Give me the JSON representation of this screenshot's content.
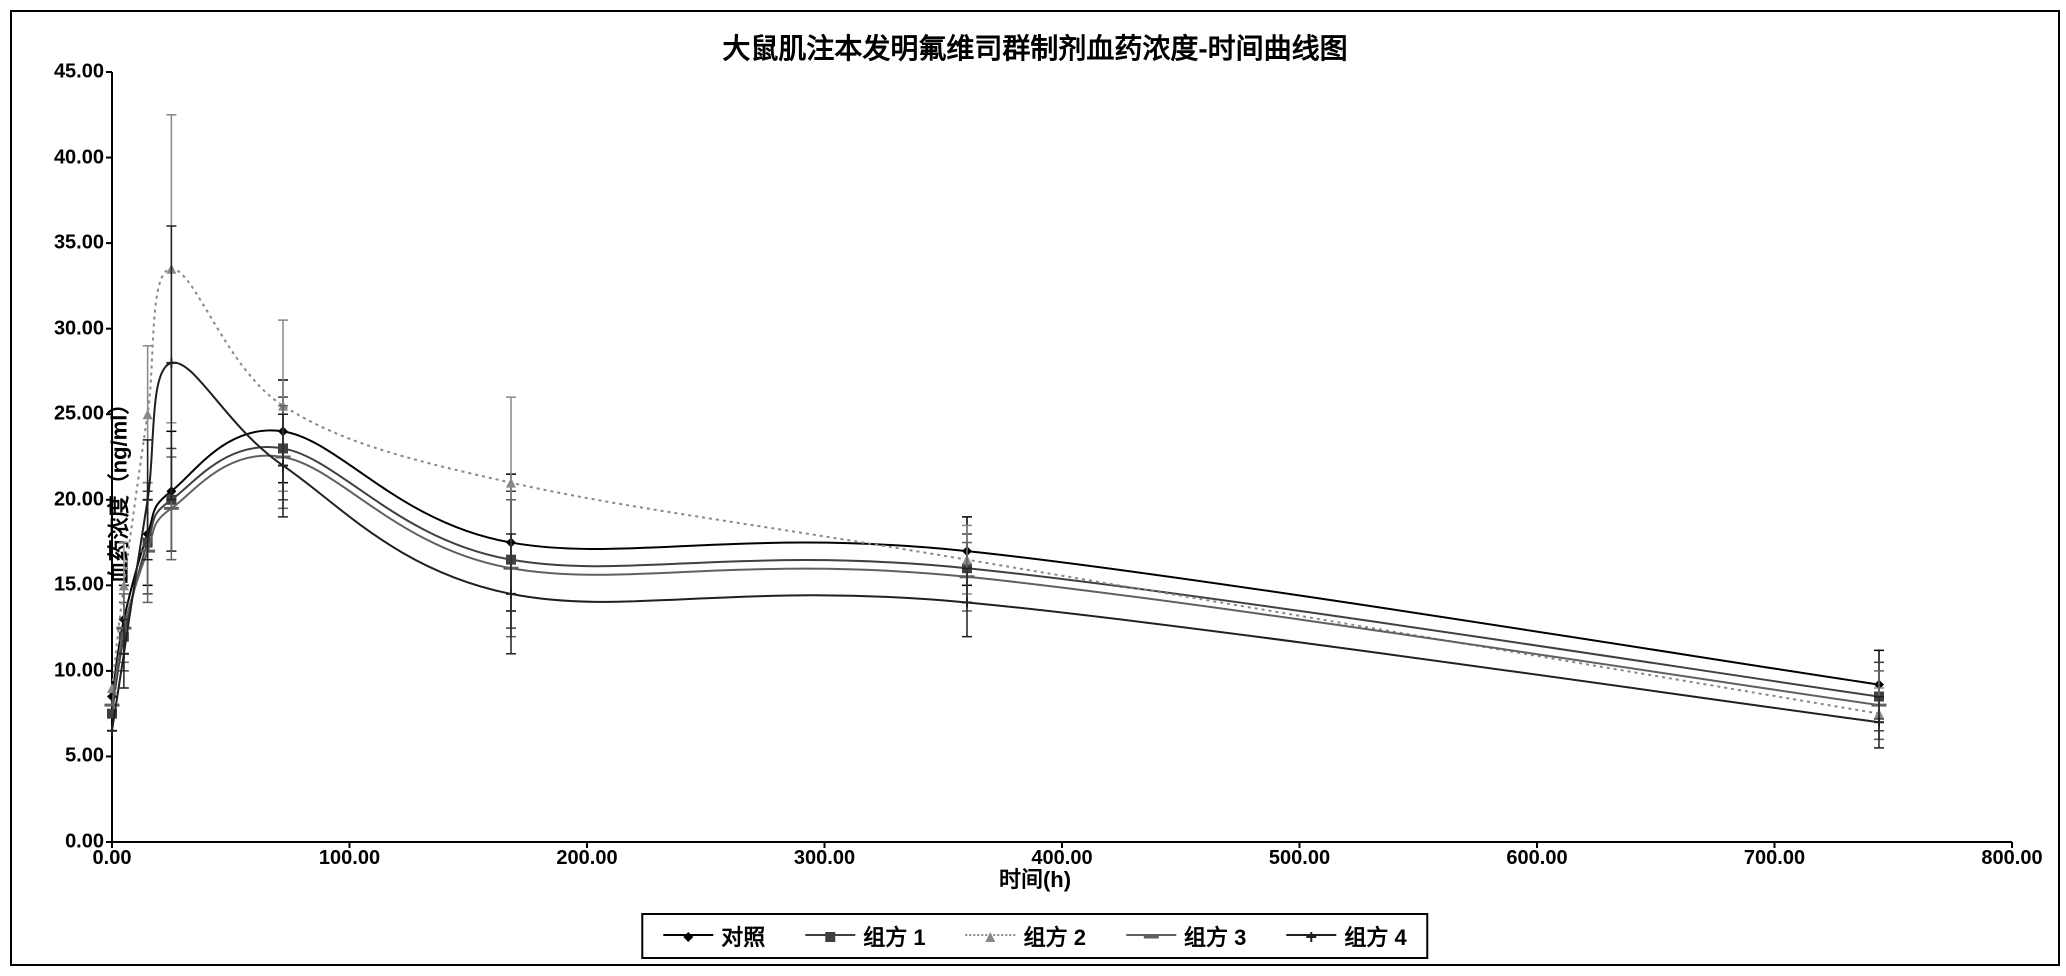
{
  "chart": {
    "title": "大鼠肌注本发明氟维司群制剂血药浓度-时间曲线图",
    "xlabel": "时间(h)",
    "ylabel": "血药浓度（ng/ml）",
    "xlim": [
      0,
      800
    ],
    "ylim": [
      0,
      45
    ],
    "xticks": [
      0,
      100,
      200,
      300,
      400,
      500,
      600,
      700,
      800
    ],
    "xtick_labels": [
      "0.00",
      "100.00",
      "200.00",
      "300.00",
      "400.00",
      "500.00",
      "600.00",
      "700.00",
      "800.00"
    ],
    "yticks": [
      0,
      5,
      10,
      15,
      20,
      25,
      30,
      35,
      40,
      45
    ],
    "ytick_labels": [
      "0.00",
      "5.00",
      "10.00",
      "15.00",
      "20.00",
      "25.00",
      "30.00",
      "35.00",
      "40.00",
      "45.00"
    ],
    "title_fontsize": 28,
    "label_fontsize": 22,
    "tick_fontsize": 20,
    "background_color": "#ffffff",
    "border_color": "#000000",
    "series": [
      {
        "name": "对照",
        "marker": "diamond",
        "color": "#000000",
        "linestyle": "solid",
        "linewidth": 2,
        "x": [
          0,
          5,
          15,
          25,
          72,
          168,
          360,
          744
        ],
        "y": [
          8.5,
          13,
          18,
          20.5,
          24,
          17.5,
          17,
          9.2
        ],
        "err": [
          0,
          2,
          3,
          3.5,
          3,
          4,
          2,
          2
        ]
      },
      {
        "name": "组方 1",
        "marker": "square",
        "color": "#404040",
        "linestyle": "solid",
        "linewidth": 2,
        "x": [
          0,
          5,
          15,
          25,
          72,
          168,
          360,
          744
        ],
        "y": [
          7.5,
          12,
          17.5,
          20,
          23,
          16.5,
          16,
          8.5
        ],
        "err": [
          0,
          2,
          3,
          3,
          3,
          4,
          2,
          2
        ]
      },
      {
        "name": "组方 2",
        "marker": "triangle",
        "color": "#888888",
        "linestyle": "dotted",
        "linewidth": 2,
        "x": [
          0,
          5,
          15,
          25,
          72,
          168,
          360,
          744
        ],
        "y": [
          9,
          15,
          25,
          33.5,
          25.5,
          21,
          16.5,
          7.5
        ],
        "err": [
          0,
          2.5,
          4,
          9,
          5,
          5,
          2,
          1.5
        ]
      },
      {
        "name": "组方 3",
        "marker": "dash",
        "color": "#606060",
        "linestyle": "solid",
        "linewidth": 2,
        "x": [
          0,
          5,
          15,
          25,
          72,
          168,
          360,
          744
        ],
        "y": [
          8,
          12.5,
          17,
          19.5,
          22.5,
          16,
          15.5,
          8
        ],
        "err": [
          0,
          2,
          3,
          3,
          3,
          4,
          2,
          2
        ]
      },
      {
        "name": "组方 4",
        "marker": "plus",
        "color": "#202020",
        "linestyle": "solid",
        "linewidth": 2,
        "x": [
          0,
          5,
          15,
          25,
          72,
          168,
          360,
          744
        ],
        "y": [
          6.5,
          11,
          20,
          28,
          22,
          14.5,
          14,
          7
        ],
        "err": [
          0,
          2,
          3.5,
          8,
          3,
          3.5,
          2,
          1.5
        ]
      }
    ],
    "legend_items": [
      "对照",
      "组方 1",
      "组方 2",
      "组方 3",
      "组方 4"
    ]
  }
}
